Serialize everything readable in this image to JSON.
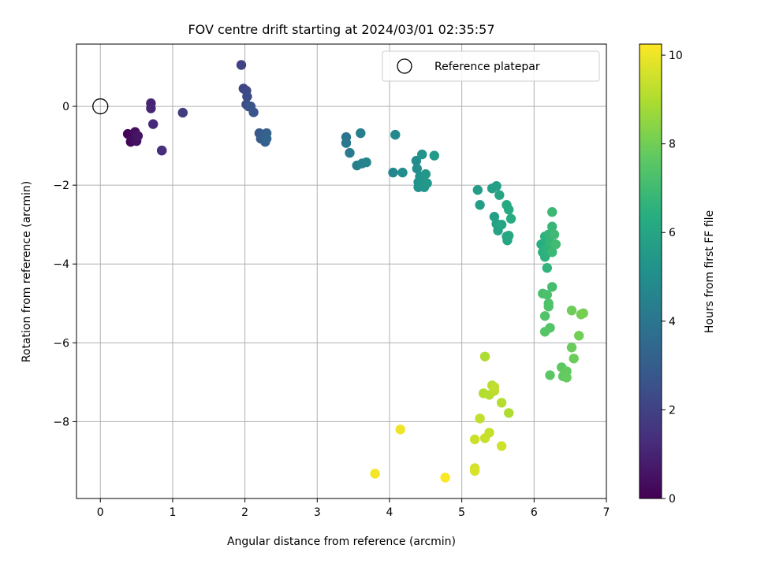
{
  "chart_data": {
    "type": "scatter",
    "title": "FOV centre drift starting at 2024/03/01 02:35:57",
    "xlabel": "Angular distance from reference (arcmin)",
    "ylabel": "Rotation from reference (arcmin)",
    "xlim": [
      -0.33,
      7.0
    ],
    "ylim": [
      -9.95,
      1.58
    ],
    "xticks": [
      0,
      1,
      2,
      3,
      4,
      5,
      6,
      7
    ],
    "yticks": [
      0,
      -2,
      -4,
      -6,
      -8
    ],
    "grid": true,
    "legend": {
      "position": "top-right",
      "entries": [
        "Reference platepar"
      ]
    },
    "reference": {
      "x": 0,
      "y": 0
    },
    "colorbar": {
      "label": "Hours from first FF file",
      "colormap": "viridis",
      "range": [
        0,
        10.25
      ],
      "ticks": [
        0,
        2,
        4,
        6,
        8,
        10
      ]
    },
    "series": [
      {
        "values": [
          {
            "x": 0.38,
            "y": -0.7,
            "c": 0.1
          },
          {
            "x": 0.42,
            "y": -0.9,
            "c": 0.2
          },
          {
            "x": 0.45,
            "y": -0.82,
            "c": 0.3
          },
          {
            "x": 0.48,
            "y": -0.65,
            "c": 0.4
          },
          {
            "x": 0.5,
            "y": -0.88,
            "c": 0.5
          },
          {
            "x": 0.52,
            "y": -0.75,
            "c": 0.6
          },
          {
            "x": 0.7,
            "y": 0.08,
            "c": 1.0
          },
          {
            "x": 0.7,
            "y": -0.05,
            "c": 1.1
          },
          {
            "x": 0.73,
            "y": -0.45,
            "c": 1.2
          },
          {
            "x": 0.85,
            "y": -1.12,
            "c": 1.3
          },
          {
            "x": 0.85,
            "y": -1.12,
            "c": 1.4
          },
          {
            "x": 1.14,
            "y": -0.16,
            "c": 1.8
          },
          {
            "x": 1.95,
            "y": 1.05,
            "c": 2.0
          },
          {
            "x": 1.98,
            "y": 0.45,
            "c": 2.1
          },
          {
            "x": 2.02,
            "y": 0.4,
            "c": 2.2
          },
          {
            "x": 2.03,
            "y": 0.25,
            "c": 2.3
          },
          {
            "x": 2.02,
            "y": 0.05,
            "c": 2.4
          },
          {
            "x": 2.05,
            "y": 0.0,
            "c": 2.5
          },
          {
            "x": 2.08,
            "y": 0.0,
            "c": 2.6
          },
          {
            "x": 2.12,
            "y": -0.15,
            "c": 2.7
          },
          {
            "x": 2.2,
            "y": -0.68,
            "c": 2.8
          },
          {
            "x": 2.22,
            "y": -0.82,
            "c": 2.9
          },
          {
            "x": 2.25,
            "y": -0.75,
            "c": 3.0
          },
          {
            "x": 2.28,
            "y": -0.9,
            "c": 3.1
          },
          {
            "x": 2.3,
            "y": -0.68,
            "c": 3.2
          },
          {
            "x": 2.3,
            "y": -0.82,
            "c": 3.3
          },
          {
            "x": 3.4,
            "y": -0.78,
            "c": 4.0
          },
          {
            "x": 3.4,
            "y": -0.93,
            "c": 4.1
          },
          {
            "x": 3.45,
            "y": -1.18,
            "c": 4.2
          },
          {
            "x": 3.55,
            "y": -1.5,
            "c": 4.3
          },
          {
            "x": 3.6,
            "y": -0.68,
            "c": 4.4
          },
          {
            "x": 3.62,
            "y": -1.45,
            "c": 4.5
          },
          {
            "x": 3.68,
            "y": -1.42,
            "c": 4.6
          },
          {
            "x": 4.05,
            "y": -1.68,
            "c": 4.7
          },
          {
            "x": 4.08,
            "y": -0.72,
            "c": 4.8
          },
          {
            "x": 4.18,
            "y": -1.68,
            "c": 4.9
          },
          {
            "x": 4.37,
            "y": -1.38,
            "c": 5.0
          },
          {
            "x": 4.38,
            "y": -1.58,
            "c": 5.05
          },
          {
            "x": 4.4,
            "y": -1.92,
            "c": 5.1
          },
          {
            "x": 4.4,
            "y": -2.05,
            "c": 5.15
          },
          {
            "x": 4.42,
            "y": -1.78,
            "c": 5.2
          },
          {
            "x": 4.45,
            "y": -1.22,
            "c": 5.25
          },
          {
            "x": 4.45,
            "y": -1.95,
            "c": 5.3
          },
          {
            "x": 4.48,
            "y": -2.05,
            "c": 5.35
          },
          {
            "x": 4.5,
            "y": -1.72,
            "c": 5.4
          },
          {
            "x": 4.52,
            "y": -1.95,
            "c": 5.45
          },
          {
            "x": 4.62,
            "y": -1.25,
            "c": 5.5
          },
          {
            "x": 5.22,
            "y": -2.12,
            "c": 5.6
          },
          {
            "x": 5.25,
            "y": -2.5,
            "c": 5.65
          },
          {
            "x": 5.42,
            "y": -2.08,
            "c": 5.7
          },
          {
            "x": 5.45,
            "y": -2.8,
            "c": 5.75
          },
          {
            "x": 5.48,
            "y": -2.02,
            "c": 5.8
          },
          {
            "x": 5.48,
            "y": -2.98,
            "c": 5.85
          },
          {
            "x": 5.5,
            "y": -3.15,
            "c": 5.9
          },
          {
            "x": 5.52,
            "y": -2.25,
            "c": 5.95
          },
          {
            "x": 5.55,
            "y": -3.0,
            "c": 6.0
          },
          {
            "x": 5.62,
            "y": -3.3,
            "c": 6.05
          },
          {
            "x": 5.63,
            "y": -3.4,
            "c": 6.1
          },
          {
            "x": 5.65,
            "y": -3.28,
            "c": 6.15
          },
          {
            "x": 5.62,
            "y": -2.5,
            "c": 6.2
          },
          {
            "x": 5.65,
            "y": -2.62,
            "c": 6.25
          },
          {
            "x": 5.68,
            "y": -2.85,
            "c": 6.3
          },
          {
            "x": 6.1,
            "y": -3.5,
            "c": 6.4
          },
          {
            "x": 6.12,
            "y": -3.7,
            "c": 6.45
          },
          {
            "x": 6.15,
            "y": -3.3,
            "c": 6.5
          },
          {
            "x": 6.15,
            "y": -3.82,
            "c": 6.55
          },
          {
            "x": 6.18,
            "y": -3.6,
            "c": 6.6
          },
          {
            "x": 6.18,
            "y": -4.1,
            "c": 6.65
          },
          {
            "x": 6.2,
            "y": -3.25,
            "c": 6.7
          },
          {
            "x": 6.22,
            "y": -3.45,
            "c": 6.75
          },
          {
            "x": 6.25,
            "y": -3.05,
            "c": 6.8
          },
          {
            "x": 6.25,
            "y": -3.7,
            "c": 6.85
          },
          {
            "x": 6.25,
            "y": -2.68,
            "c": 6.9
          },
          {
            "x": 6.28,
            "y": -3.25,
            "c": 6.95
          },
          {
            "x": 6.3,
            "y": -3.5,
            "c": 7.0
          },
          {
            "x": 6.25,
            "y": -4.58,
            "c": 7.1
          },
          {
            "x": 6.12,
            "y": -4.75,
            "c": 7.2
          },
          {
            "x": 6.18,
            "y": -4.78,
            "c": 7.25
          },
          {
            "x": 6.2,
            "y": -5.0,
            "c": 7.3
          },
          {
            "x": 6.2,
            "y": -5.08,
            "c": 7.35
          },
          {
            "x": 6.15,
            "y": -5.32,
            "c": 7.4
          },
          {
            "x": 6.22,
            "y": -5.62,
            "c": 7.45
          },
          {
            "x": 6.15,
            "y": -5.72,
            "c": 7.5
          },
          {
            "x": 6.22,
            "y": -6.82,
            "c": 7.6
          },
          {
            "x": 6.38,
            "y": -6.62,
            "c": 7.65
          },
          {
            "x": 6.4,
            "y": -6.85,
            "c": 7.7
          },
          {
            "x": 6.45,
            "y": -6.72,
            "c": 7.75
          },
          {
            "x": 6.45,
            "y": -6.88,
            "c": 7.8
          },
          {
            "x": 6.52,
            "y": -6.12,
            "c": 7.85
          },
          {
            "x": 6.55,
            "y": -6.4,
            "c": 7.9
          },
          {
            "x": 6.52,
            "y": -5.18,
            "c": 7.95
          },
          {
            "x": 6.62,
            "y": -5.82,
            "c": 8.0
          },
          {
            "x": 6.65,
            "y": -5.28,
            "c": 8.05
          },
          {
            "x": 6.68,
            "y": -5.25,
            "c": 8.1
          },
          {
            "x": 5.32,
            "y": -6.35,
            "c": 9.0
          },
          {
            "x": 5.3,
            "y": -7.28,
            "c": 9.05
          },
          {
            "x": 5.38,
            "y": -7.32,
            "c": 9.1
          },
          {
            "x": 5.42,
            "y": -7.08,
            "c": 9.15
          },
          {
            "x": 5.45,
            "y": -7.22,
            "c": 9.2
          },
          {
            "x": 5.45,
            "y": -7.12,
            "c": 9.25
          },
          {
            "x": 5.55,
            "y": -7.52,
            "c": 9.1
          },
          {
            "x": 5.65,
            "y": -7.78,
            "c": 9.0
          },
          {
            "x": 5.25,
            "y": -7.92,
            "c": 9.3
          },
          {
            "x": 5.38,
            "y": -8.28,
            "c": 9.35
          },
          {
            "x": 5.32,
            "y": -8.42,
            "c": 9.4
          },
          {
            "x": 5.18,
            "y": -8.45,
            "c": 9.45
          },
          {
            "x": 5.55,
            "y": -8.62,
            "c": 9.5
          },
          {
            "x": 5.18,
            "y": -9.18,
            "c": 9.6
          },
          {
            "x": 5.18,
            "y": -9.25,
            "c": 9.65
          },
          {
            "x": 3.8,
            "y": -9.32,
            "c": 10.1
          },
          {
            "x": 4.15,
            "y": -8.2,
            "c": 10.0
          },
          {
            "x": 4.77,
            "y": -9.42,
            "c": 10.2
          }
        ]
      }
    ]
  }
}
